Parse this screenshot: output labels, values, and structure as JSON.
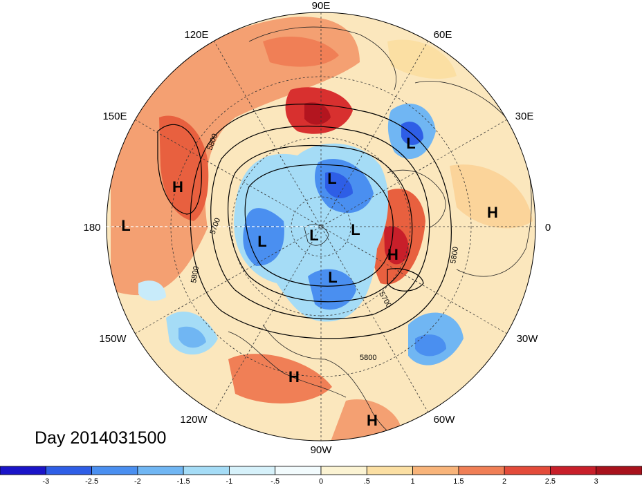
{
  "title": "Day 2014031500",
  "meridian_labels": [
    "90E",
    "60E",
    "30E",
    "0",
    "30W",
    "60W",
    "90W",
    "120W",
    "150W",
    "180",
    "150E",
    "120E"
  ],
  "contour_labels": [
    "5800",
    "5700",
    "5800",
    "5700",
    "5800",
    "5800"
  ],
  "pressure_centers": [
    {
      "label": "L"
    },
    {
      "label": "L"
    },
    {
      "label": "L"
    },
    {
      "label": "L"
    },
    {
      "label": "L"
    },
    {
      "label": "L"
    },
    {
      "label": "L"
    },
    {
      "label": "H"
    },
    {
      "label": "H"
    },
    {
      "label": "H"
    },
    {
      "label": "H"
    },
    {
      "label": "H"
    }
  ],
  "colorbar": {
    "ticks": [
      "-3",
      "-2.5",
      "-2",
      "-1.5",
      "-1",
      "-.5",
      "0",
      ".5",
      "1",
      "1.5",
      "2",
      "2.5",
      "3"
    ],
    "colors": [
      "#1a14c8",
      "#2e5ee6",
      "#4a8ff0",
      "#70b6f3",
      "#a5dcf6",
      "#d6f1fa",
      "#fbf3d3",
      "#fbdfa3",
      "#f8b47a",
      "#f07f56",
      "#e34b3a",
      "#c81f2a",
      "#a8121c"
    ]
  },
  "palette": {
    "cold_deep": "#2e5ee6",
    "cold_mid": "#70b6f3",
    "cold_light": "#c8ebfa",
    "warm_light": "#fbe3b0",
    "warm_mid": "#f4a072",
    "warm_deep": "#d8302f"
  }
}
